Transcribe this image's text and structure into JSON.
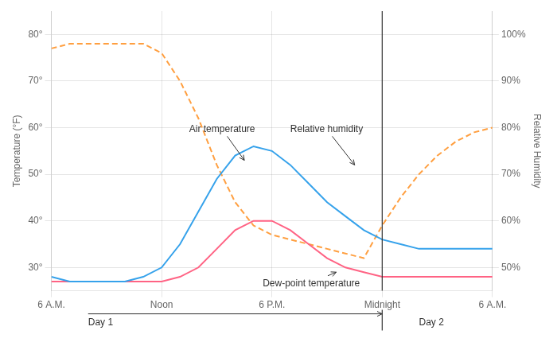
{
  "chart_data": {
    "type": "line",
    "x": [
      0,
      1,
      2,
      3,
      4,
      5,
      6,
      7,
      8,
      9,
      10,
      11,
      12,
      13,
      14,
      15,
      16,
      17,
      18,
      19,
      20,
      21,
      22,
      23,
      24
    ],
    "series": [
      {
        "name": "Air temperature",
        "line_style": "solid",
        "values": [
          28,
          27,
          27,
          27,
          27,
          28,
          30,
          35,
          42,
          49,
          54,
          56,
          55,
          52,
          48,
          44,
          41,
          38,
          36,
          35,
          34,
          34,
          34,
          34,
          34
        ]
      },
      {
        "name": "Dew-point temperature",
        "line_style": "solid",
        "values": [
          27,
          27,
          27,
          27,
          27,
          27,
          27,
          28,
          30,
          34,
          38,
          40,
          40,
          38,
          35,
          32,
          30,
          29,
          28,
          28,
          28,
          28,
          28,
          28,
          28
        ]
      },
      {
        "name": "Relative humidity",
        "line_style": "dashed",
        "axis": "y2",
        "values": [
          97,
          98,
          98,
          98,
          98,
          98,
          96,
          90,
          82,
          72,
          64,
          59,
          57,
          56,
          55,
          54,
          53,
          52,
          59,
          65,
          70,
          74,
          77,
          79,
          80
        ]
      }
    ],
    "xlim": [
      0,
      24
    ],
    "xticks": [
      {
        "value": 0,
        "label": "6 A.M."
      },
      {
        "value": 6,
        "label": "Noon"
      },
      {
        "value": 12,
        "label": "6 P.M."
      },
      {
        "value": 18,
        "label": "Midnight"
      },
      {
        "value": 24,
        "label": "6 A.M."
      }
    ],
    "ylim": [
      25,
      85
    ],
    "yticks": [
      {
        "value": 30,
        "label": "30°"
      },
      {
        "value": 40,
        "label": "40°"
      },
      {
        "value": 50,
        "label": "50°"
      },
      {
        "value": 60,
        "label": "60°"
      },
      {
        "value": 70,
        "label": "70°"
      },
      {
        "value": 80,
        "label": "80°"
      }
    ],
    "y2lim": [
      45,
      105
    ],
    "y2ticks": [
      {
        "value": 50,
        "label": "50%"
      },
      {
        "value": 60,
        "label": "60%"
      },
      {
        "value": 70,
        "label": "70%"
      },
      {
        "value": 80,
        "label": "80%"
      },
      {
        "value": 90,
        "label": "90%"
      },
      {
        "value": 100,
        "label": "100%"
      }
    ],
    "y_label": "Temperature (°F)",
    "y2_label": "Relative Humidity",
    "grid": true,
    "annotations": [
      {
        "text": "Air temperature",
        "x": 10.5,
        "y": 53,
        "text_x": 7.5,
        "text_y": 59
      },
      {
        "text": "Relative humidity",
        "x": 16.5,
        "y": 72,
        "text_x": 13.0,
        "text_y": 79,
        "axis": "y2"
      },
      {
        "text": "Dew-point temperature",
        "x": 15.5,
        "y": 29,
        "text_x": 11.5,
        "text_y": 26
      }
    ],
    "vertical_lines": [
      18
    ],
    "day_labels": [
      {
        "text": "Day 1",
        "x": 2
      },
      {
        "text": "Day 2",
        "x": 20
      }
    ]
  }
}
